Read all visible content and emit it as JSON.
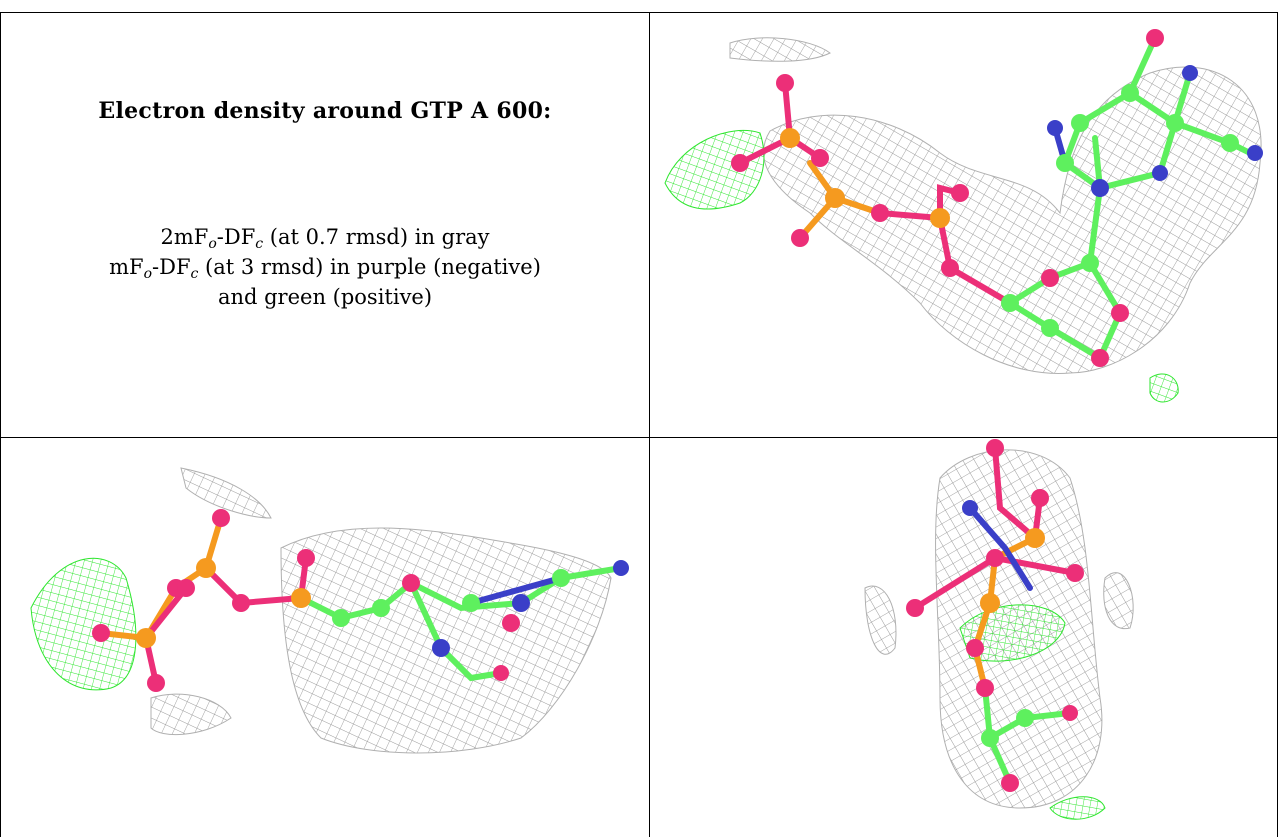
{
  "title": "Electron density around GTP A 600:",
  "legend": {
    "line1_prefix": "2mF",
    "line1_sub1": "o",
    "line1_mid": "-DF",
    "line1_sub2": "c",
    "line1_suffix": " (at 0.7 rmsd) in gray",
    "line2_prefix": "mF",
    "line2_sub1": "o",
    "line2_mid": "-DF",
    "line2_sub2": "c",
    "line2_suffix": " (at 3 rmsd) in purple (negative)",
    "line3": "and green (positive)"
  },
  "colors": {
    "density_gray": "#9a9a9a",
    "positive_green": "#2ee62e",
    "carbon": "#5ef05e",
    "oxygen": "#ec2f78",
    "phosphorus": "#f59a1f",
    "nitrogen": "#3a3fc8",
    "border": "#000000"
  },
  "panels": [
    {
      "name": "view-top-right",
      "icon": "molecule-render"
    },
    {
      "name": "view-bottom-left",
      "icon": "molecule-render"
    },
    {
      "name": "view-bottom-right",
      "icon": "molecule-render"
    }
  ]
}
